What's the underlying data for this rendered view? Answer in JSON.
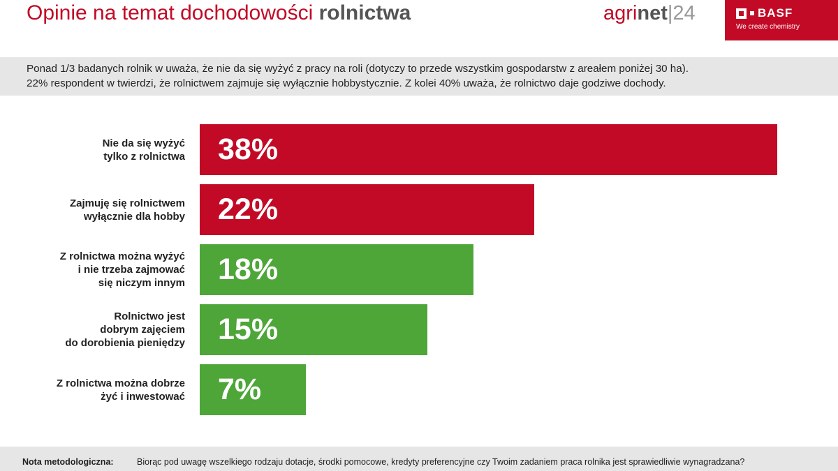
{
  "header": {
    "title_regular": "Opinie na temat dochodowości ",
    "title_bold": "rolnictwa"
  },
  "agrinet": {
    "agri": "agri",
    "net": "net",
    "sep": "|",
    "num": "24"
  },
  "basf": {
    "name": "BASF",
    "tagline": "We create chemistry"
  },
  "intro": {
    "line1": "Ponad 1/3 badanych rolnik w uważa, że nie da się wyżyć z pracy na roli (dotyczy to przede wszystkim gospodarstw z areałem poniżej 30 ha).",
    "line2": "22% respondent w twierdzi, że rolnictwem zajmuje się wyłącznie hobbystycznie. Z kolei 40% uważa, że rolnictwo daje godziwe dochody."
  },
  "chart_data": {
    "type": "bar",
    "orientation": "horizontal",
    "categories": [
      [
        "Nie da się wyżyć",
        "tylko z rolnictwa"
      ],
      [
        "Zajmuję się rolnictwem",
        "wyłącznie dla hobby"
      ],
      [
        "Z rolnictwa można wyżyć",
        "i nie trzeba zajmować",
        "się niczym innym"
      ],
      [
        "Rolnictwo jest",
        "dobrym zajęciem",
        "do dorobienia pieniędzy"
      ],
      [
        "Z rolnictwa można dobrze",
        "żyć i inwestować"
      ]
    ],
    "values": [
      38,
      22,
      18,
      15,
      7
    ],
    "value_labels": [
      "38%",
      "22%",
      "18%",
      "15%",
      "7%"
    ],
    "colors": [
      "#c20a26",
      "#c20a26",
      "#4ea639",
      "#4ea639",
      "#4ea639"
    ],
    "xlim": [
      0,
      38
    ],
    "grid": false,
    "legend": "none"
  },
  "footer": {
    "label": "Nota metodologiczna:",
    "text": "Biorąc pod uwagę wszelkiego rodzaju dotacje, środki pomocowe, kredyty preferencyjne czy Twoim zadaniem praca rolnika jest sprawiedliwie wynagradzana?"
  }
}
